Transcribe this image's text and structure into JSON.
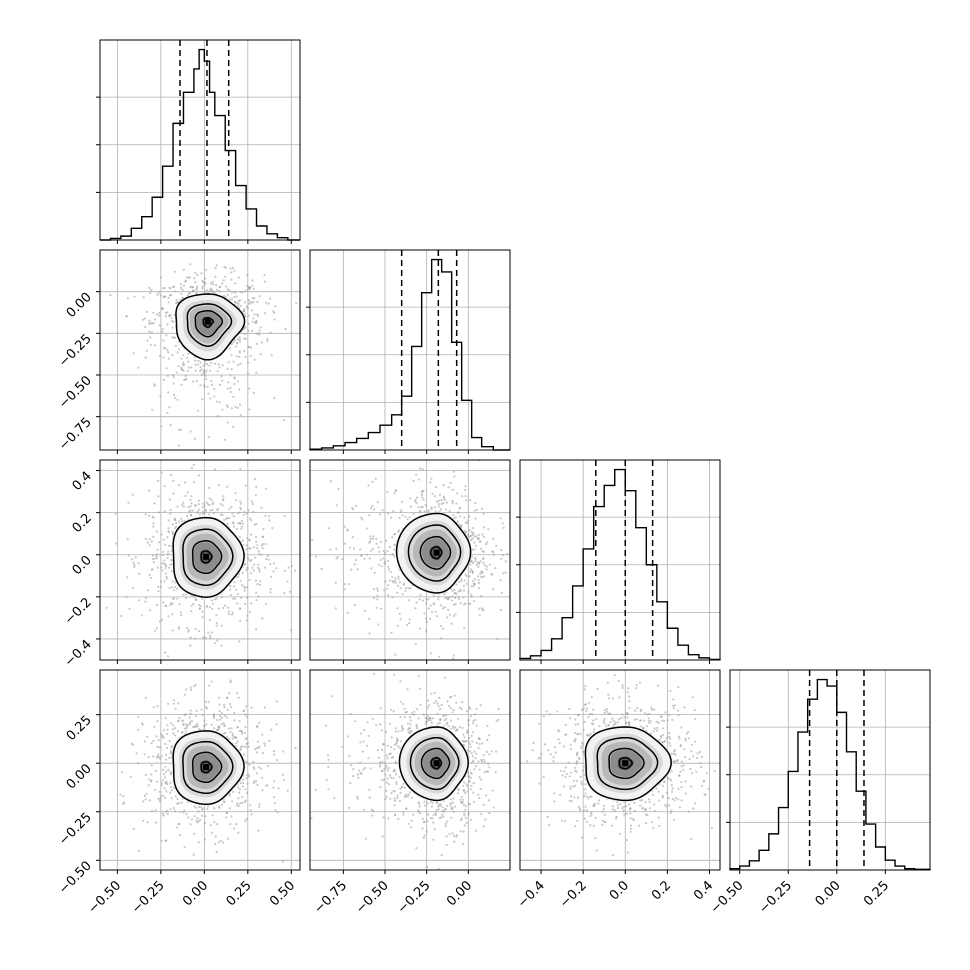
{
  "chart_data": {
    "type": "corner",
    "title": "",
    "grid": true,
    "colors": {
      "line": "#000000",
      "grid": "#b0b0b0",
      "scatter": "#9a9a9a",
      "frame": "#000000"
    },
    "quantiles": [
      0.16,
      0.5,
      0.84
    ],
    "parameters": [
      {
        "index": 0,
        "range": [
          -0.6,
          0.55
        ],
        "ticks": [
          -0.5,
          -0.25,
          0.0,
          0.25,
          0.5
        ],
        "tick_labels": [
          "−0.50",
          "−0.25",
          "0.00",
          "0.25",
          "0.50"
        ],
        "quantile_values": [
          -0.14,
          0.015,
          0.14
        ],
        "histogram": {
          "bin_edges": [
            -0.6,
            -0.54,
            -0.48,
            -0.42,
            -0.36,
            -0.3,
            -0.24,
            -0.18,
            -0.12,
            -0.06,
            -0.03,
            0.0,
            0.03,
            0.06,
            0.12,
            0.18,
            0.24,
            0.3,
            0.36,
            0.42,
            0.48,
            0.55
          ],
          "counts": [
            0,
            2,
            5,
            15,
            30,
            55,
            95,
            150,
            190,
            220,
            245,
            230,
            190,
            160,
            115,
            70,
            40,
            18,
            8,
            3,
            0
          ]
        }
      },
      {
        "index": 1,
        "range": [
          -0.95,
          0.25
        ],
        "ticks": [
          -0.75,
          -0.5,
          -0.25,
          0.0
        ],
        "tick_labels": [
          "−0.75",
          "−0.50",
          "−0.25",
          "0.00"
        ],
        "quantile_values": [
          -0.4,
          -0.18,
          -0.07
        ],
        "histogram": {
          "bin_edges": [
            -0.95,
            -0.88,
            -0.81,
            -0.74,
            -0.67,
            -0.6,
            -0.53,
            -0.46,
            -0.4,
            -0.34,
            -0.28,
            -0.22,
            -0.16,
            -0.1,
            -0.04,
            0.02,
            0.08,
            0.15,
            0.25
          ],
          "counts": [
            2,
            5,
            10,
            18,
            28,
            42,
            60,
            85,
            130,
            250,
            380,
            460,
            430,
            260,
            120,
            30,
            8,
            0
          ]
        }
      },
      {
        "index": 2,
        "range": [
          -0.5,
          0.45
        ],
        "ticks": [
          -0.4,
          -0.2,
          0.0,
          0.2,
          0.4
        ],
        "tick_labels": [
          "−0.4",
          "−0.2",
          "0.0",
          "0.2",
          "0.4"
        ],
        "quantile_values": [
          -0.14,
          0.0,
          0.13
        ],
        "histogram": {
          "bin_edges": [
            -0.5,
            -0.45,
            -0.4,
            -0.35,
            -0.3,
            -0.25,
            -0.2,
            -0.15,
            -0.1,
            -0.05,
            0.0,
            0.05,
            0.1,
            0.15,
            0.2,
            0.25,
            0.3,
            0.35,
            0.4,
            0.45
          ],
          "counts": [
            3,
            8,
            18,
            40,
            80,
            140,
            210,
            290,
            330,
            360,
            320,
            250,
            180,
            110,
            60,
            28,
            10,
            4,
            1
          ]
        }
      },
      {
        "index": 3,
        "range": [
          -0.55,
          0.48
        ],
        "ticks": [
          -0.5,
          -0.25,
          0.0,
          0.25
        ],
        "tick_labels": [
          "−0.50",
          "−0.25",
          "0.00",
          "0.25"
        ],
        "quantile_values": [
          -0.14,
          0.0,
          0.14
        ],
        "histogram": {
          "bin_edges": [
            -0.55,
            -0.5,
            -0.45,
            -0.4,
            -0.35,
            -0.3,
            -0.25,
            -0.2,
            -0.15,
            -0.1,
            -0.05,
            0.0,
            0.05,
            0.1,
            0.15,
            0.2,
            0.25,
            0.3,
            0.35,
            0.4,
            0.48
          ],
          "counts": [
            2,
            6,
            14,
            30,
            55,
            95,
            150,
            210,
            260,
            290,
            280,
            240,
            180,
            120,
            70,
            35,
            15,
            6,
            2,
            1
          ]
        }
      }
    ],
    "pairs": [
      {
        "x": 0,
        "y": 1,
        "center": [
          0.02,
          -0.18
        ],
        "spread": [
          0.14,
          0.12
        ],
        "contour_scales": [
          1.4,
          0.9,
          0.55,
          0.2
        ],
        "tail": "down"
      },
      {
        "x": 0,
        "y": 2,
        "center": [
          0.01,
          -0.01
        ],
        "spread": [
          0.15,
          0.14
        ],
        "contour_scales": [
          1.35,
          0.95,
          0.55,
          0.2
        ],
        "tail": "none"
      },
      {
        "x": 1,
        "y": 2,
        "center": [
          -0.19,
          0.01
        ],
        "spread": [
          0.14,
          0.14
        ],
        "contour_scales": [
          1.35,
          0.95,
          0.55,
          0.2
        ],
        "tail": "left"
      },
      {
        "x": 0,
        "y": 3,
        "center": [
          0.01,
          -0.02
        ],
        "spread": [
          0.15,
          0.14
        ],
        "contour_scales": [
          1.35,
          0.95,
          0.55,
          0.2
        ],
        "tail": "none"
      },
      {
        "x": 1,
        "y": 3,
        "center": [
          -0.19,
          0.0
        ],
        "spread": [
          0.13,
          0.14
        ],
        "contour_scales": [
          1.35,
          0.95,
          0.55,
          0.2
        ],
        "tail": "left"
      },
      {
        "x": 2,
        "y": 3,
        "center": [
          0.0,
          0.0
        ],
        "spread": [
          0.15,
          0.14
        ],
        "contour_scales": [
          1.35,
          0.95,
          0.55,
          0.2
        ],
        "tail": "none"
      }
    ]
  }
}
